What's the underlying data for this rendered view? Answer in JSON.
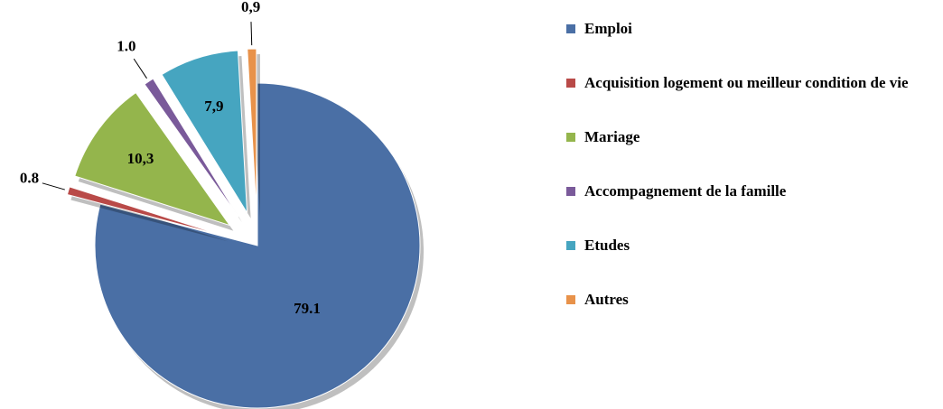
{
  "chart_data": {
    "type": "pie",
    "categories": [
      "Emploi",
      "Acquisition logement ou meilleur condition de vie",
      "Mariage",
      "Accompagnement de la famille",
      "Etudes",
      "Autres"
    ],
    "values": [
      79.1,
      0.8,
      10.3,
      1.0,
      7.9,
      0.9
    ],
    "value_labels": [
      "79.1",
      "0.8",
      "10,3",
      "1.0",
      "7,9",
      "0,9"
    ],
    "colors": [
      "#4a6fa5",
      "#b94a48",
      "#94b54c",
      "#7a5a9a",
      "#46a5c0",
      "#e8924a"
    ],
    "legend": "right"
  }
}
